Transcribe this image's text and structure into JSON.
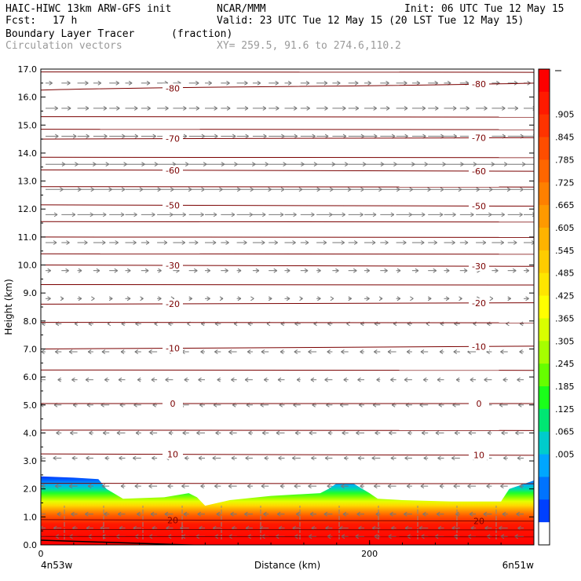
{
  "header": {
    "model": "HAIC-HIWC 13km ARW-GFS init",
    "org": "NCAR/MMM",
    "init": "Init: 06 UTC Tue 12 May 15",
    "fcst_label": "Fcst:",
    "fcst_value": "17 h",
    "valid": "Valid: 23 UTC Tue 12 May 15 (20 LST Tue 12 May 15)",
    "field": "Boundary Layer Tracer",
    "units": "(fraction)",
    "field2": "Circulation vectors",
    "xy": "XY= 259.5, 91.6 to 274.6,110.2"
  },
  "colorbar": {
    "labels": [
      ".905",
      ".845",
      ".785",
      ".725",
      ".665",
      ".605",
      ".545",
      ".485",
      ".425",
      ".365",
      ".305",
      ".245",
      ".185",
      ".125",
      ".065",
      ".005"
    ],
    "colors": [
      "#fd0000",
      "#ff1a00",
      "#ff3300",
      "#ff4d00",
      "#ff6600",
      "#ff8000",
      "#ff9900",
      "#ffb300",
      "#ffcc00",
      "#ffe500",
      "#ffff00",
      "#d9ff00",
      "#a6ff00",
      "#66ff00",
      "#1aff1a",
      "#00e673",
      "#00cccc",
      "#00a6ff",
      "#0073ff",
      "#0040ff",
      "#ffffff"
    ]
  },
  "chart_data": {
    "type": "heatmap",
    "xlabel": "Distance (km)",
    "ylabel": "Height (km)",
    "xlim": [
      0,
      300
    ],
    "ylim": [
      0,
      17
    ],
    "x_ticks": [
      {
        "value": 0,
        "label": "0"
      },
      {
        "value": 200,
        "label": "200"
      }
    ],
    "y_ticks": [
      "0.0",
      "1.0",
      "2.0",
      "3.0",
      "4.0",
      "5.0",
      "6.0",
      "7.0",
      "8.0",
      "9.0",
      "10.0",
      "11.0",
      "12.0",
      "13.0",
      "14.0",
      "15.0",
      "16.0",
      "17.0"
    ],
    "endpoint_labels": {
      "left": "4n53w",
      "right": "6n51w"
    },
    "pbl_top_profile": {
      "x": [
        0,
        20,
        35,
        40,
        50,
        75,
        90,
        95,
        100,
        115,
        140,
        170,
        170,
        175,
        180,
        190,
        200,
        205,
        220,
        250,
        280,
        285,
        300
      ],
      "top_km": [
        2.45,
        2.4,
        2.35,
        2.0,
        1.65,
        1.7,
        1.85,
        1.7,
        1.4,
        1.6,
        1.75,
        1.85,
        1.85,
        2.0,
        2.2,
        2.2,
        1.85,
        1.65,
        1.6,
        1.55,
        1.55,
        2.0,
        2.3
      ]
    },
    "contours": [
      {
        "label": "-80",
        "y_left": 16.25,
        "y_right": 16.5
      },
      {
        "label": "-70",
        "y_left": 14.5,
        "y_right": 14.55
      },
      {
        "label": "-60",
        "y_left": 13.4,
        "y_right": 13.35
      },
      {
        "label": "-50",
        "y_left": 12.15,
        "y_right": 12.1
      },
      {
        "label": "-30",
        "y_left": 10.0,
        "y_right": 9.95
      },
      {
        "label": "-20",
        "y_left": 8.6,
        "y_right": 8.65
      },
      {
        "label": "-10",
        "y_left": 7.0,
        "y_right": 7.1
      },
      {
        "label": "0",
        "y_left": 5.05,
        "y_right": 5.05
      },
      {
        "label": "10",
        "y_left": 3.25,
        "y_right": 3.2
      },
      {
        "label": "20",
        "y_left": 0.9,
        "y_right": 0.85
      }
    ],
    "extra_isolines_km": [
      16.9,
      15.3,
      14.85,
      13.85,
      12.8,
      11.55,
      11.0,
      10.4,
      9.3,
      7.95,
      6.25,
      4.1,
      2.2,
      0.55,
      0.3
    ],
    "wind_vectors": [
      {
        "z": 16.5,
        "u": 0.7
      },
      {
        "z": 15.6,
        "u": 0.9
      },
      {
        "z": 14.6,
        "u": 1.1
      },
      {
        "z": 13.6,
        "u": 1.4
      },
      {
        "z": 12.7,
        "u": 1.4
      },
      {
        "z": 11.8,
        "u": 1.1
      },
      {
        "z": 10.8,
        "u": 0.8
      },
      {
        "z": 9.8,
        "u": 0.5
      },
      {
        "z": 8.8,
        "u": 0.25
      },
      {
        "z": 7.9,
        "u": -0.3
      },
      {
        "z": 6.9,
        "u": -0.5
      },
      {
        "z": 5.9,
        "u": -0.45
      },
      {
        "z": 5.0,
        "u": -0.5
      },
      {
        "z": 4.0,
        "u": -0.5
      },
      {
        "z": 3.1,
        "u": -0.5
      },
      {
        "z": 2.1,
        "u": -0.5
      },
      {
        "z": 1.1,
        "u": -0.5
      },
      {
        "z": 0.6,
        "u": -0.55
      },
      {
        "z": 0.3,
        "u": -0.55
      }
    ]
  }
}
